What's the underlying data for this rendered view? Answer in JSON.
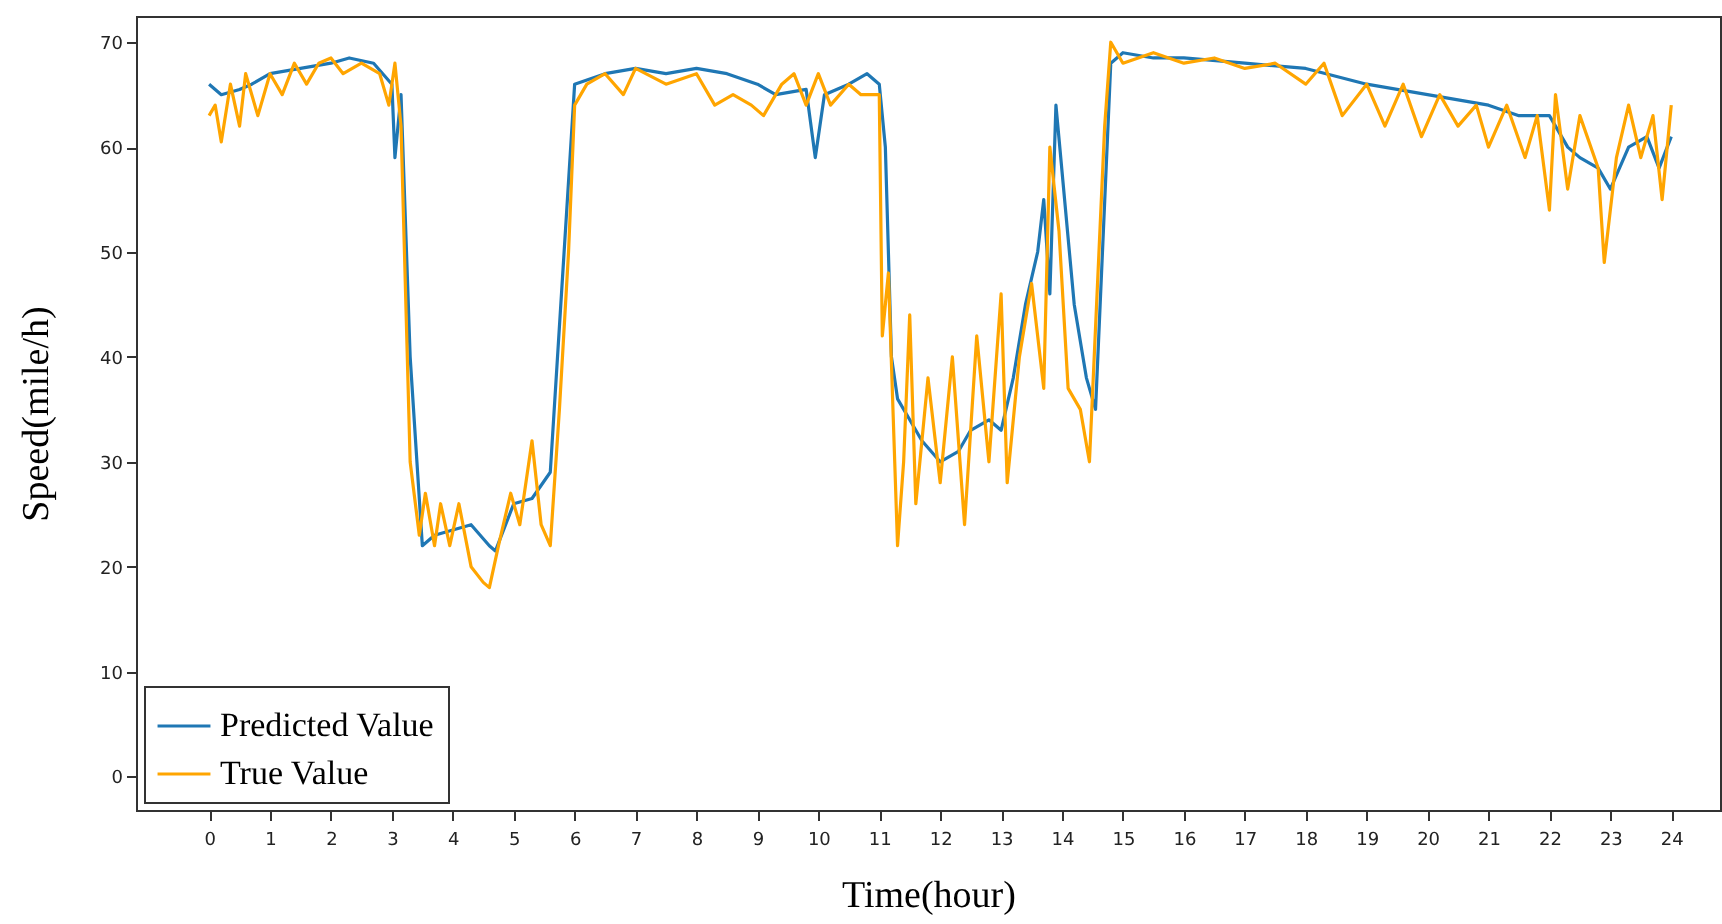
{
  "chart_data": {
    "type": "line",
    "xlabel": "Time(hour)",
    "ylabel": "Speed(mile/h)",
    "xlim": [
      -1.2,
      24.8
    ],
    "ylim": [
      -3.2,
      72.5
    ],
    "xticks": [
      0,
      1,
      2,
      3,
      4,
      5,
      6,
      7,
      8,
      9,
      10,
      11,
      12,
      13,
      14,
      15,
      16,
      17,
      18,
      19,
      20,
      21,
      22,
      23,
      24
    ],
    "yticks": [
      0,
      10,
      20,
      30,
      40,
      50,
      60,
      70
    ],
    "grid": false,
    "legend": "bottom left",
    "marker": "none",
    "line_style": "solid",
    "series": [
      {
        "name": "Predicted Value",
        "color": "#1f77b4",
        "x": [
          0,
          0.2,
          0.5,
          0.7,
          1,
          1.5,
          2,
          2.3,
          2.7,
          3,
          3.05,
          3.15,
          3.3,
          3.5,
          3.7,
          4,
          4.3,
          4.6,
          4.7,
          5,
          5.3,
          5.6,
          6,
          6.5,
          7,
          7.5,
          8,
          8.5,
          9,
          9.3,
          9.8,
          9.95,
          10.1,
          10.5,
          10.8,
          11,
          11.1,
          11.2,
          11.3,
          11.5,
          11.7,
          12,
          12.3,
          12.5,
          12.8,
          13,
          13.2,
          13.4,
          13.6,
          13.7,
          13.8,
          13.9,
          14.2,
          14.4,
          14.55,
          14.8,
          15,
          15.5,
          16,
          17,
          18,
          19,
          20,
          20.5,
          21,
          21.5,
          22,
          22.3,
          22.5,
          22.8,
          23,
          23.3,
          23.6,
          23.8,
          24
        ],
        "values": [
          66,
          65,
          65.5,
          66,
          67,
          67.5,
          68,
          68.5,
          68,
          66,
          59,
          65,
          40,
          22,
          23,
          23.5,
          24,
          22,
          21.5,
          26,
          26.5,
          29,
          66,
          67,
          67.5,
          67,
          67.5,
          67,
          66,
          65,
          65.5,
          59,
          65,
          66,
          67,
          66,
          60,
          40,
          36,
          34,
          32,
          30,
          31,
          33,
          34,
          33,
          38,
          45,
          50,
          55,
          46,
          64,
          45,
          38,
          35,
          68,
          69,
          68.5,
          68.5,
          68,
          67.5,
          66,
          65,
          64.5,
          64,
          63,
          63,
          60,
          59,
          58,
          56,
          60,
          61,
          58,
          61
        ]
      },
      {
        "name": "True Value",
        "color": "#ffa500",
        "x": [
          0,
          0.1,
          0.2,
          0.35,
          0.5,
          0.6,
          0.8,
          1,
          1.2,
          1.4,
          1.6,
          1.8,
          2,
          2.2,
          2.5,
          2.8,
          2.95,
          3.05,
          3.15,
          3.3,
          3.45,
          3.55,
          3.7,
          3.8,
          3.95,
          4.1,
          4.3,
          4.5,
          4.6,
          4.75,
          4.95,
          5.1,
          5.3,
          5.45,
          5.6,
          5.75,
          5.9,
          6,
          6.2,
          6.5,
          6.8,
          7,
          7.5,
          8,
          8.3,
          8.6,
          8.9,
          9.1,
          9.4,
          9.6,
          9.8,
          10,
          10.2,
          10.5,
          10.7,
          11,
          11.05,
          11.15,
          11.3,
          11.4,
          11.5,
          11.6,
          11.8,
          12,
          12.2,
          12.4,
          12.6,
          12.8,
          13,
          13.1,
          13.3,
          13.5,
          13.7,
          13.8,
          13.95,
          14.1,
          14.3,
          14.45,
          14.7,
          14.8,
          15,
          15.5,
          16,
          16.5,
          17,
          17.5,
          18,
          18.3,
          18.6,
          19,
          19.3,
          19.6,
          19.9,
          20.2,
          20.5,
          20.8,
          21,
          21.3,
          21.6,
          21.8,
          22,
          22.1,
          22.3,
          22.5,
          22.8,
          22.9,
          23.1,
          23.3,
          23.5,
          23.7,
          23.85,
          24
        ],
        "values": [
          63,
          64,
          60.5,
          66,
          62,
          67,
          63,
          67,
          65,
          68,
          66,
          68,
          68.5,
          67,
          68,
          67,
          64,
          68,
          62,
          30,
          23,
          27,
          22,
          26,
          22,
          26,
          20,
          18.5,
          18,
          22,
          27,
          24,
          32,
          24,
          22,
          35,
          50,
          64,
          66,
          67,
          65,
          67.5,
          66,
          67,
          64,
          65,
          64,
          63,
          66,
          67,
          64,
          67,
          64,
          66,
          65,
          65,
          42,
          48,
          22,
          30,
          44,
          26,
          38,
          28,
          40,
          24,
          42,
          30,
          46,
          28,
          40,
          47,
          37,
          60,
          52,
          37,
          35,
          30,
          62,
          70,
          68,
          69,
          68,
          68.5,
          67.5,
          68,
          66,
          68,
          63,
          66,
          62,
          66,
          61,
          65,
          62,
          64,
          60,
          64,
          59,
          63,
          54,
          65,
          56,
          63,
          58,
          49,
          59,
          64,
          59,
          63,
          55,
          64
        ]
      }
    ]
  }
}
